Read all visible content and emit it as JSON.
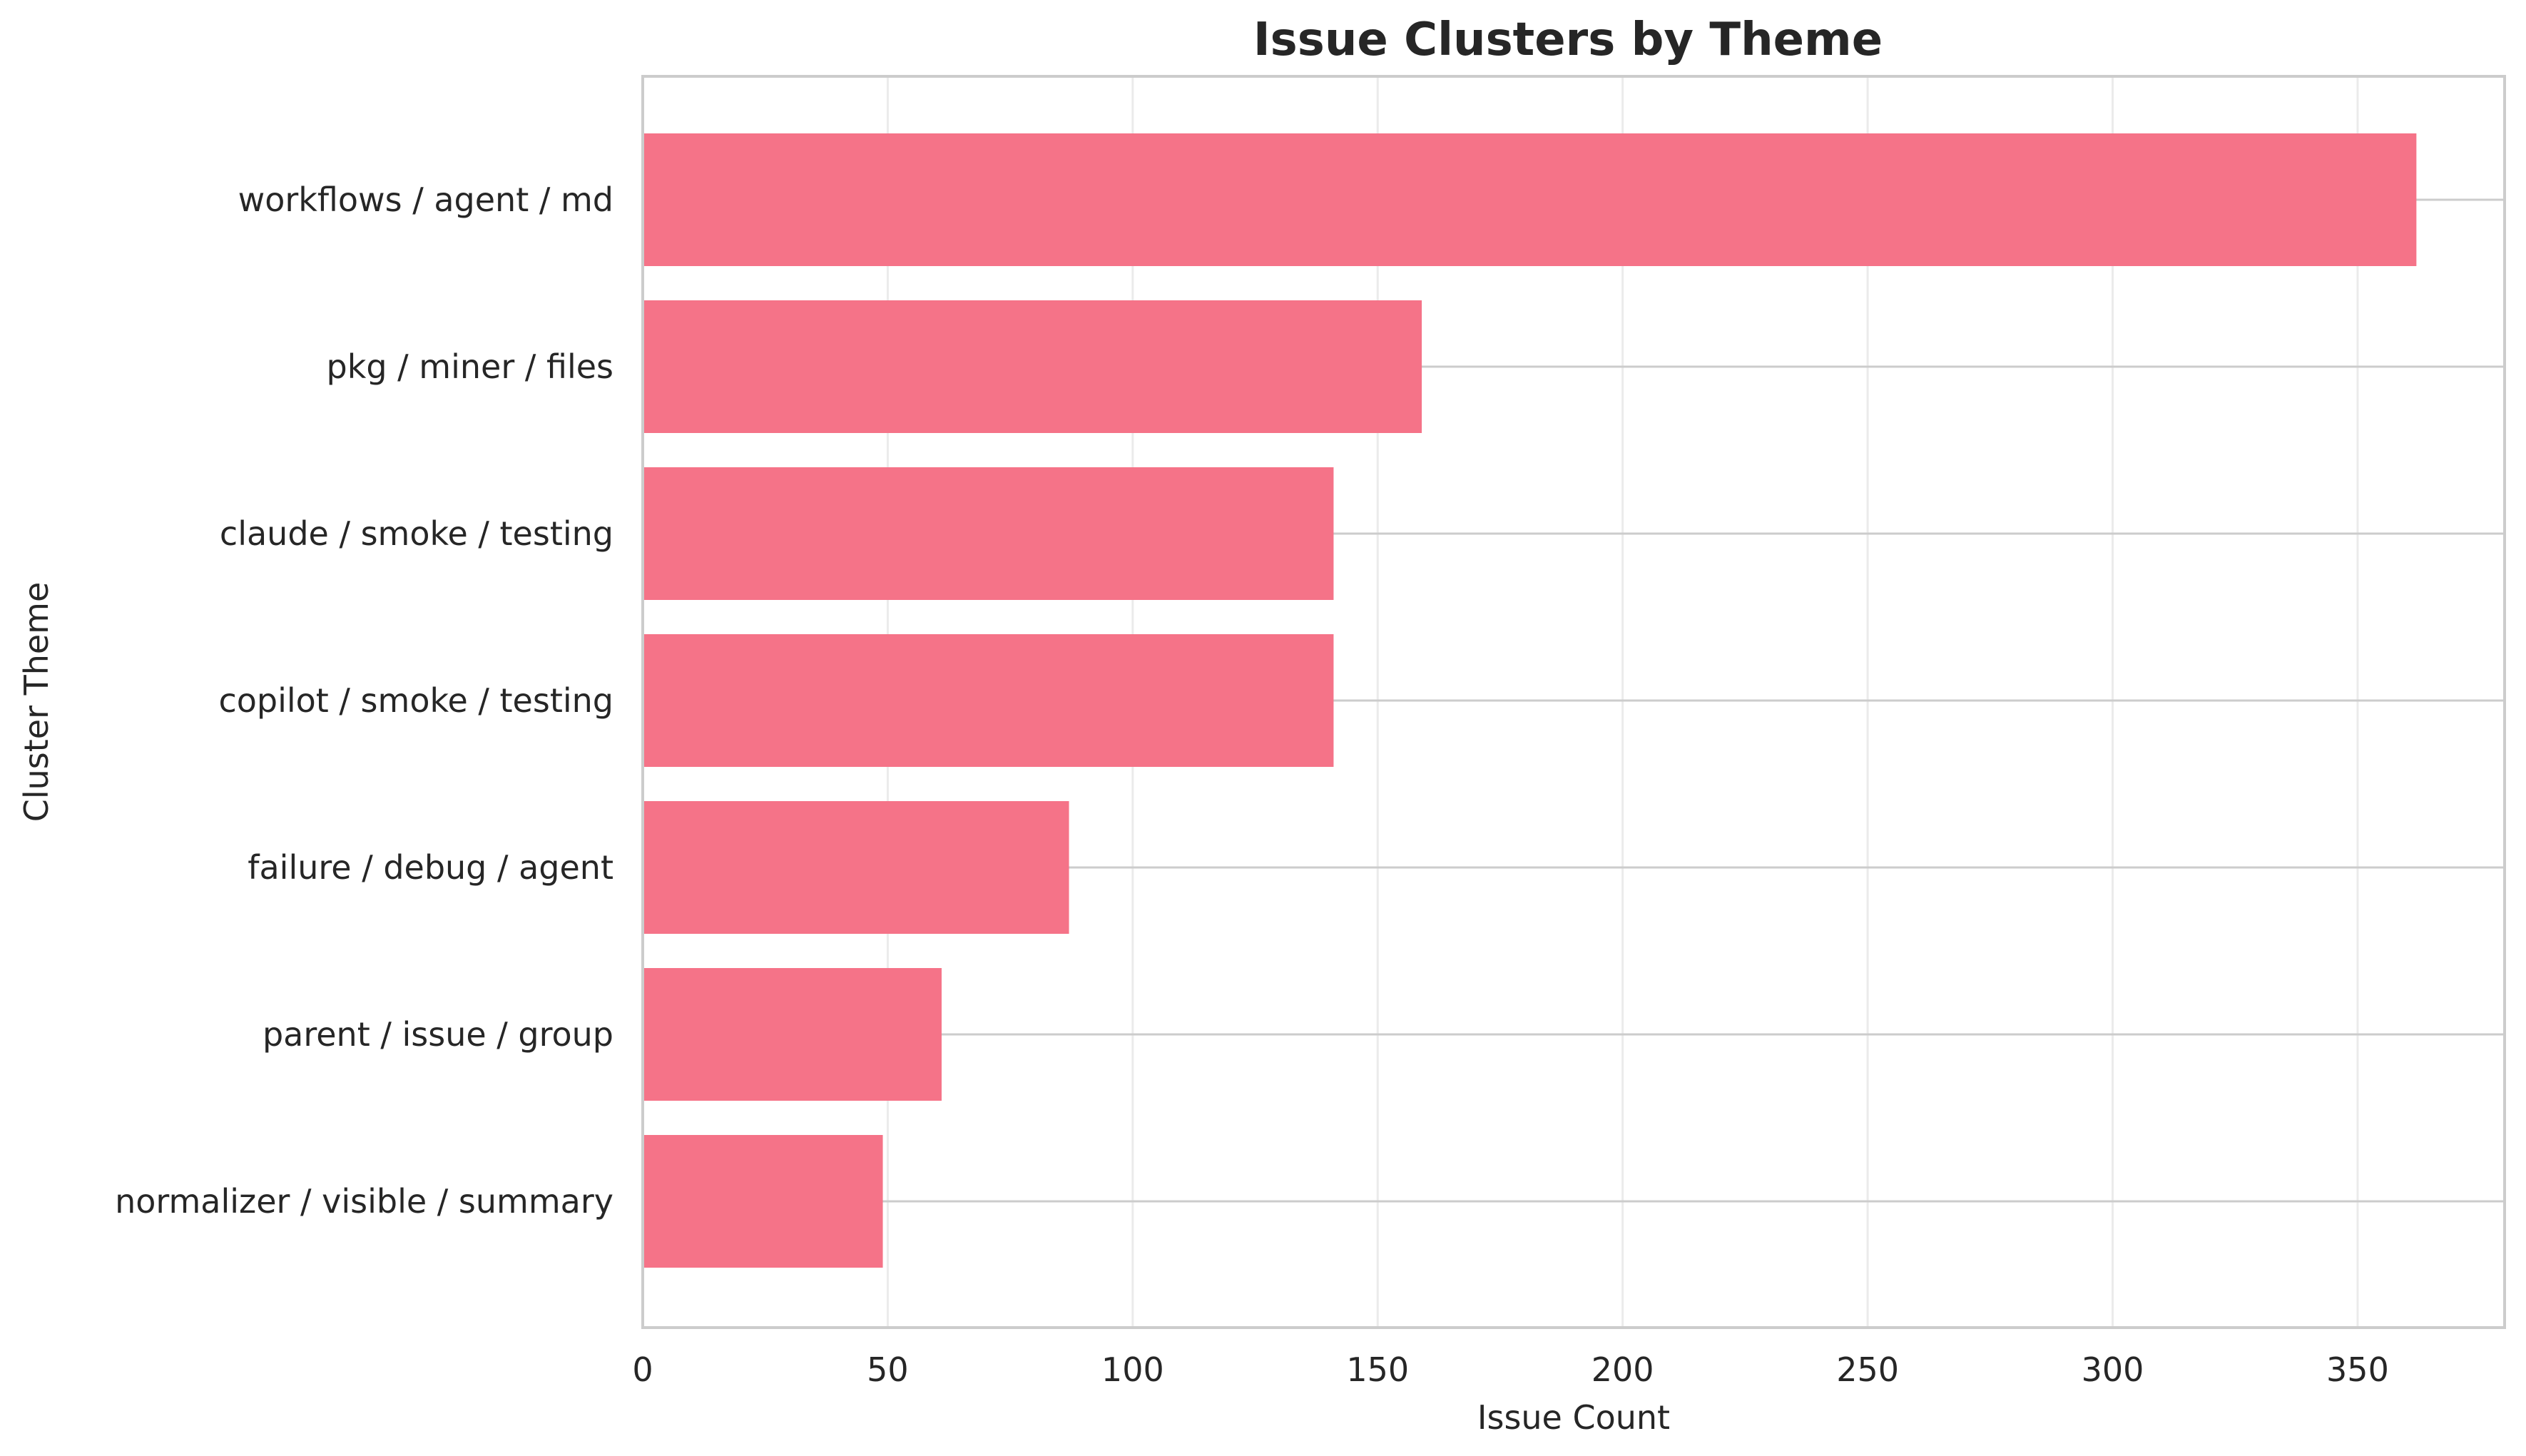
{
  "chart_data": {
    "type": "bar",
    "orientation": "horizontal",
    "title": "Issue Clusters by Theme",
    "xlabel": "Issue Count",
    "ylabel": "Cluster Theme",
    "categories": [
      "workflows / agent / md",
      "pkg / miner / files",
      "claude / smoke / testing",
      "copilot / smoke / testing",
      "failure / debug / agent",
      "parent / issue / group",
      "normalizer / visible / summary"
    ],
    "values": [
      362,
      159,
      141,
      141,
      87,
      61,
      49
    ],
    "xlim": [
      0,
      380
    ],
    "xticks": [
      0,
      50,
      100,
      150,
      200,
      250,
      300,
      350
    ],
    "xtick_labels": [
      "0",
      "50",
      "100",
      "150",
      "200",
      "250",
      "300",
      "350"
    ],
    "grid": true,
    "legend": "none",
    "colors": {
      "bar": "#f57388",
      "grid": "#ebebeb",
      "category_line": "#cccccc",
      "spine": "#cccccc",
      "text": "#262626",
      "background": "#ffffff"
    }
  }
}
